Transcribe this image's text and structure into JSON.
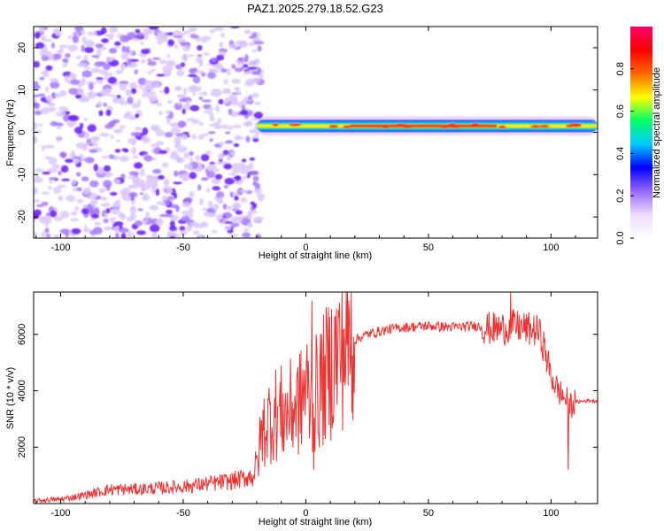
{
  "chart_data": [
    {
      "type": "heatmap",
      "title": "PAZ1.2025.279.18.52.G23",
      "xlabel": "Height of straight line (km)",
      "ylabel": "Frequency (Hz)",
      "xlim": [
        -111,
        119
      ],
      "ylim": [
        -25,
        25
      ],
      "xticks": [
        -100,
        -50,
        0,
        50,
        100
      ],
      "yticks": [
        -20,
        -10,
        0,
        10,
        20
      ],
      "colorbar": {
        "label": "Normalized spectral amplitude",
        "range": [
          0,
          1
        ],
        "ticks": [
          "0.0",
          "0.2",
          "0.4",
          "0.6",
          "0.8"
        ],
        "colors": [
          "#ffffff",
          "#ebdcff",
          "#9966ff",
          "#0000ff",
          "#00ccff",
          "#00ff66",
          "#ffff00",
          "#ff6600",
          "#ff0000",
          "#ff0066"
        ]
      },
      "noise_region_x": [
        -111,
        -20
      ],
      "signal_band": {
        "x": [
          -20,
          119
        ],
        "center_freq_hz": 1.5,
        "peak_x": [
          18,
          78
        ],
        "peak_amplitude": 0.95
      }
    },
    {
      "type": "line",
      "xlabel": "Height of straight line (km)",
      "ylabel": "SNR (10 * v/v)",
      "xlim": [
        -111,
        119
      ],
      "ylim": [
        0,
        7500
      ],
      "xticks": [
        -100,
        -50,
        0,
        50,
        100
      ],
      "yticks": [
        2000,
        4000,
        6000
      ],
      "series": [
        {
          "name": "SNR",
          "color": "#ee3333",
          "x": [
            -111,
            -100,
            -90,
            -80,
            -70,
            -60,
            -50,
            -40,
            -30,
            -25,
            -22,
            -20,
            -18,
            -15,
            -12,
            -8,
            -5,
            -2,
            0,
            2,
            5,
            8,
            12,
            15,
            20,
            25,
            30,
            35,
            40,
            50,
            60,
            70,
            75,
            80,
            85,
            90,
            95,
            97,
            100,
            103,
            105,
            107,
            108,
            110,
            115,
            119
          ],
          "y": [
            100,
            150,
            300,
            500,
            500,
            550,
            600,
            700,
            800,
            900,
            1000,
            1300,
            2500,
            3000,
            3200,
            3200,
            3400,
            3600,
            4200,
            3500,
            4000,
            4500,
            5200,
            5600,
            5800,
            6000,
            6100,
            6200,
            6250,
            6300,
            6250,
            6300,
            6200,
            6200,
            6300,
            6200,
            6100,
            5600,
            4500,
            4000,
            3800,
            3600,
            3500,
            3600,
            3650,
            3650
          ]
        }
      ]
    }
  ]
}
